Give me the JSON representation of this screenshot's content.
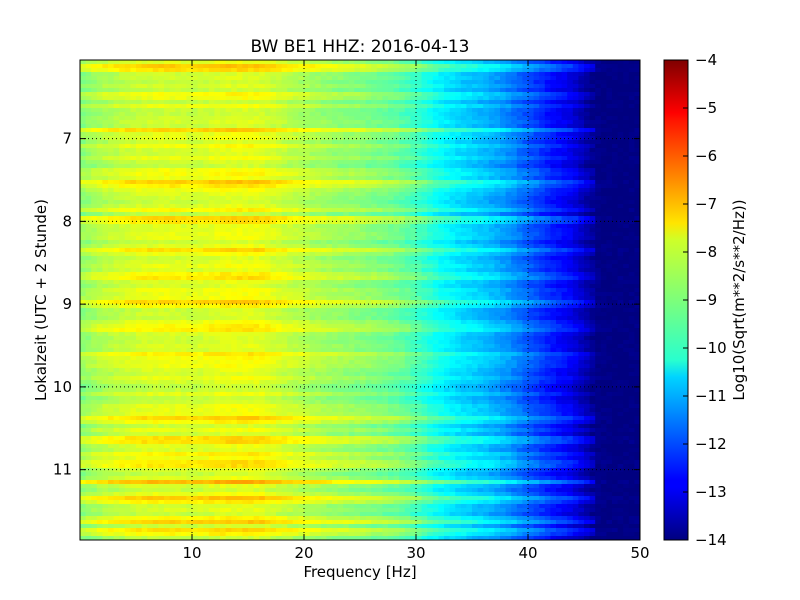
{
  "chart_data": {
    "type": "heatmap",
    "title": "BW BE1 HHZ: 2016-04-13",
    "xlabel": "Frequency [Hz]",
    "ylabel": "Lokalzeit (UTC + 2 Stunde)",
    "xlim": [
      0,
      50
    ],
    "ylim": [
      11.85,
      6.05
    ],
    "y_direction": "inverted",
    "xticks": [
      10,
      20,
      30,
      40,
      50
    ],
    "yticks": [
      7,
      8,
      9,
      10,
      11
    ],
    "grid": true,
    "colormap": "jet",
    "colorbar": {
      "label": "Log10(Sqrt(m**2/s**2/Hz))",
      "range": [
        -14,
        -4
      ],
      "ticks": [
        -4,
        -5,
        -6,
        -7,
        -8,
        -9,
        -10,
        -11,
        -12,
        -13,
        -14
      ]
    },
    "frequency_profile": {
      "freq_hz": [
        0,
        2,
        5,
        8,
        10,
        13,
        16,
        18,
        20,
        22,
        25,
        28,
        30,
        32,
        34,
        36,
        38,
        40,
        42,
        44,
        45,
        46,
        47,
        48,
        50
      ],
      "log10_value": [
        -8.9,
        -8.5,
        -8.2,
        -8.1,
        -8.2,
        -8.0,
        -8.0,
        -8.3,
        -8.5,
        -8.7,
        -8.9,
        -9.2,
        -9.6,
        -10.2,
        -10.6,
        -10.9,
        -11.3,
        -11.9,
        -12.5,
        -13.0,
        -13.5,
        -13.9,
        -14.0,
        -14.0,
        -14.0
      ]
    },
    "notable_rows_time": [
      6.15,
      6.9,
      7.55,
      8.0,
      8.35,
      8.65,
      9.0,
      9.3,
      9.6,
      10.4,
      10.65,
      10.95,
      11.15,
      11.35,
      11.6,
      11.75
    ]
  }
}
